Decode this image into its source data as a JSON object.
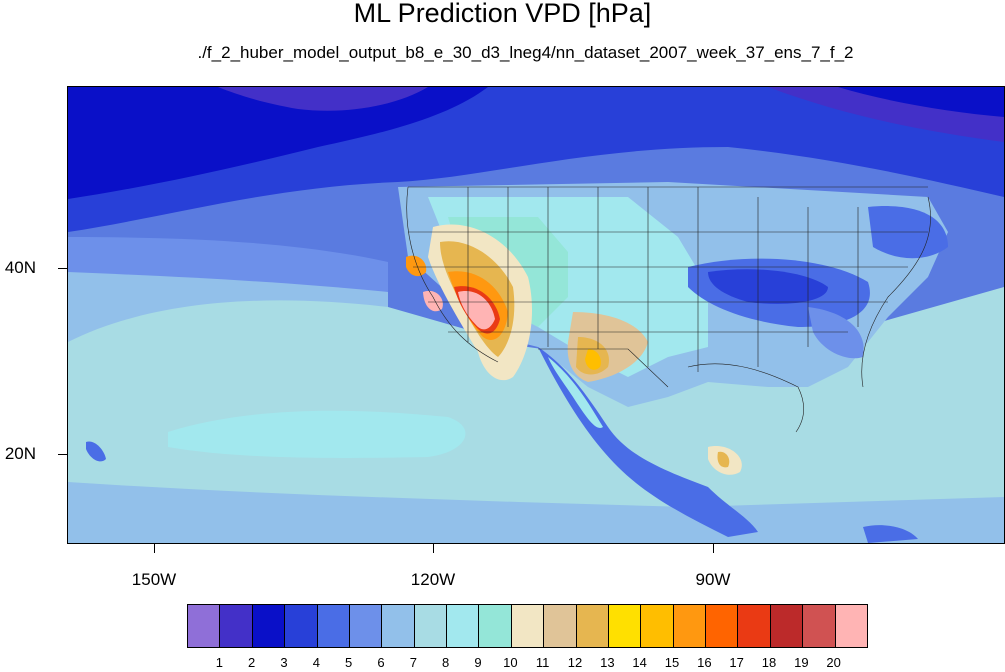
{
  "title": "ML Prediction VPD [hPa]",
  "subtitle": "./f_2_huber_model_output_b8_e_30_d3_lneg4/nn_dataset_2007_week_37_ens_7_f_2",
  "map": {
    "lat_labels": [
      "40N",
      "20N"
    ],
    "lon_labels": [
      "150W",
      "120W",
      "90W"
    ]
  },
  "colorbar": {
    "colors": [
      "#8f6fd8",
      "#4330c8",
      "#0a10c8",
      "#2840d8",
      "#4a6de6",
      "#6d90ea",
      "#92c0ea",
      "#a8dce4",
      "#a2e8ee",
      "#94e6d8",
      "#f2e6c4",
      "#e0c498",
      "#e6b650",
      "#ffe000",
      "#ffbe00",
      "#ff9810",
      "#ff6400",
      "#ea3a14",
      "#bc2a2a",
      "#d05252",
      "#ffb4b4"
    ],
    "labels": [
      "1",
      "2",
      "3",
      "4",
      "5",
      "6",
      "7",
      "8",
      "9",
      "10",
      "11",
      "12",
      "13",
      "14",
      "15",
      "16",
      "17",
      "18",
      "19",
      "20"
    ]
  }
}
